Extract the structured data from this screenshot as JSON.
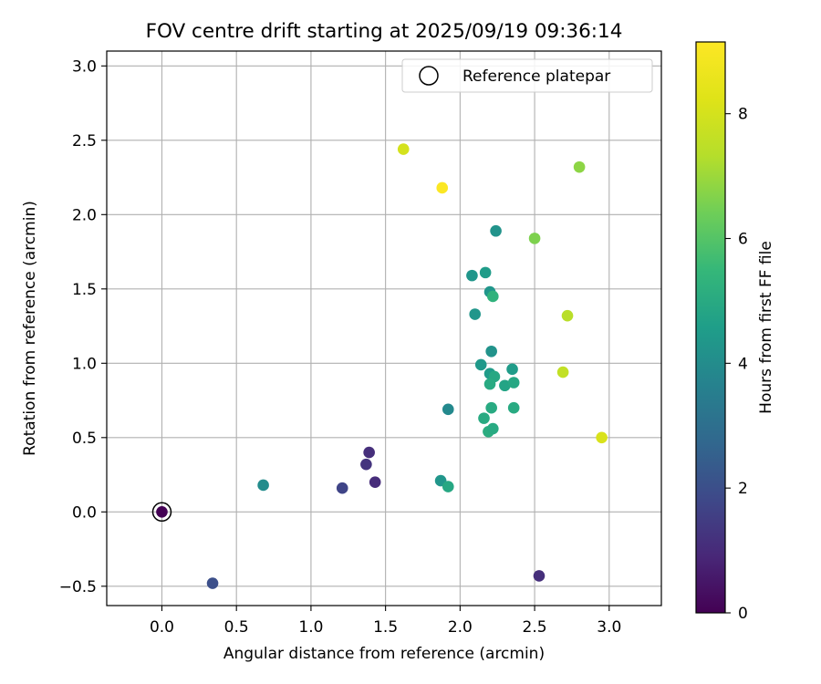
{
  "chart_data": {
    "type": "scatter",
    "title": "FOV centre drift starting at 2025/09/19 09:36:14",
    "xlabel": "Angular distance from reference (arcmin)",
    "ylabel": "Rotation from reference (arcmin)",
    "xlim": [
      -0.37,
      3.35
    ],
    "ylim": [
      -0.63,
      3.1
    ],
    "xticks": [
      0.0,
      0.5,
      1.0,
      1.5,
      2.0,
      2.5,
      3.0
    ],
    "xtick_labels": [
      "0.0",
      "0.5",
      "1.0",
      "1.5",
      "2.0",
      "2.5",
      "3.0"
    ],
    "yticks": [
      -0.5,
      0.0,
      0.5,
      1.0,
      1.5,
      2.0,
      2.5,
      3.0
    ],
    "ytick_labels": [
      "−0.5",
      "0.0",
      "0.5",
      "1.0",
      "1.5",
      "2.0",
      "2.5",
      "3.0"
    ],
    "grid": true,
    "legend": {
      "position": "top-right",
      "entries": [
        {
          "label": "Reference platepar",
          "marker": "open-circle"
        }
      ]
    },
    "colorbar": {
      "label": "Hours from first FF file",
      "colormap": "viridis",
      "range": [
        0,
        9.15
      ],
      "ticks": [
        0,
        2,
        4,
        6,
        8
      ],
      "tick_labels": [
        "0",
        "2",
        "4",
        "6",
        "8"
      ]
    },
    "reference_point": {
      "x": 0.0,
      "y": 0.0
    },
    "points": [
      {
        "x": 0.0,
        "y": 0.0,
        "hours": 0.0
      },
      {
        "x": 0.34,
        "y": -0.48,
        "hours": 2.0
      },
      {
        "x": 2.53,
        "y": -0.43,
        "hours": 1.1
      },
      {
        "x": 1.21,
        "y": 0.16,
        "hours": 1.7
      },
      {
        "x": 1.43,
        "y": 0.2,
        "hours": 1.05
      },
      {
        "x": 1.37,
        "y": 0.32,
        "hours": 1.25
      },
      {
        "x": 1.39,
        "y": 0.4,
        "hours": 1.1
      },
      {
        "x": 0.68,
        "y": 0.18,
        "hours": 4.0
      },
      {
        "x": 1.87,
        "y": 0.21,
        "hours": 4.3
      },
      {
        "x": 1.92,
        "y": 0.17,
        "hours": 4.9
      },
      {
        "x": 1.92,
        "y": 0.69,
        "hours": 3.9
      },
      {
        "x": 2.16,
        "y": 0.63,
        "hours": 5.0
      },
      {
        "x": 2.19,
        "y": 0.54,
        "hours": 5.1
      },
      {
        "x": 2.22,
        "y": 0.56,
        "hours": 5.0
      },
      {
        "x": 2.21,
        "y": 0.7,
        "hours": 5.0
      },
      {
        "x": 2.36,
        "y": 0.7,
        "hours": 5.0
      },
      {
        "x": 2.14,
        "y": 0.99,
        "hours": 4.4
      },
      {
        "x": 2.2,
        "y": 0.93,
        "hours": 4.5
      },
      {
        "x": 2.23,
        "y": 0.91,
        "hours": 4.9
      },
      {
        "x": 2.2,
        "y": 0.86,
        "hours": 5.0
      },
      {
        "x": 2.3,
        "y": 0.85,
        "hours": 4.8
      },
      {
        "x": 2.36,
        "y": 0.87,
        "hours": 4.9
      },
      {
        "x": 2.35,
        "y": 0.96,
        "hours": 4.5
      },
      {
        "x": 2.21,
        "y": 1.08,
        "hours": 4.2
      },
      {
        "x": 2.1,
        "y": 1.33,
        "hours": 4.3
      },
      {
        "x": 2.08,
        "y": 1.59,
        "hours": 4.3
      },
      {
        "x": 2.17,
        "y": 1.61,
        "hours": 4.5
      },
      {
        "x": 2.2,
        "y": 1.48,
        "hours": 4.3
      },
      {
        "x": 2.22,
        "y": 1.45,
        "hours": 5.3
      },
      {
        "x": 2.24,
        "y": 1.89,
        "hours": 4.2
      },
      {
        "x": 2.5,
        "y": 1.84,
        "hours": 6.6
      },
      {
        "x": 2.8,
        "y": 2.32,
        "hours": 6.8
      },
      {
        "x": 2.69,
        "y": 0.94,
        "hours": 7.6
      },
      {
        "x": 2.72,
        "y": 1.32,
        "hours": 7.4
      },
      {
        "x": 2.95,
        "y": 0.5,
        "hours": 8.1
      },
      {
        "x": 1.62,
        "y": 2.44,
        "hours": 8.0
      },
      {
        "x": 1.88,
        "y": 2.18,
        "hours": 9.1
      }
    ]
  }
}
